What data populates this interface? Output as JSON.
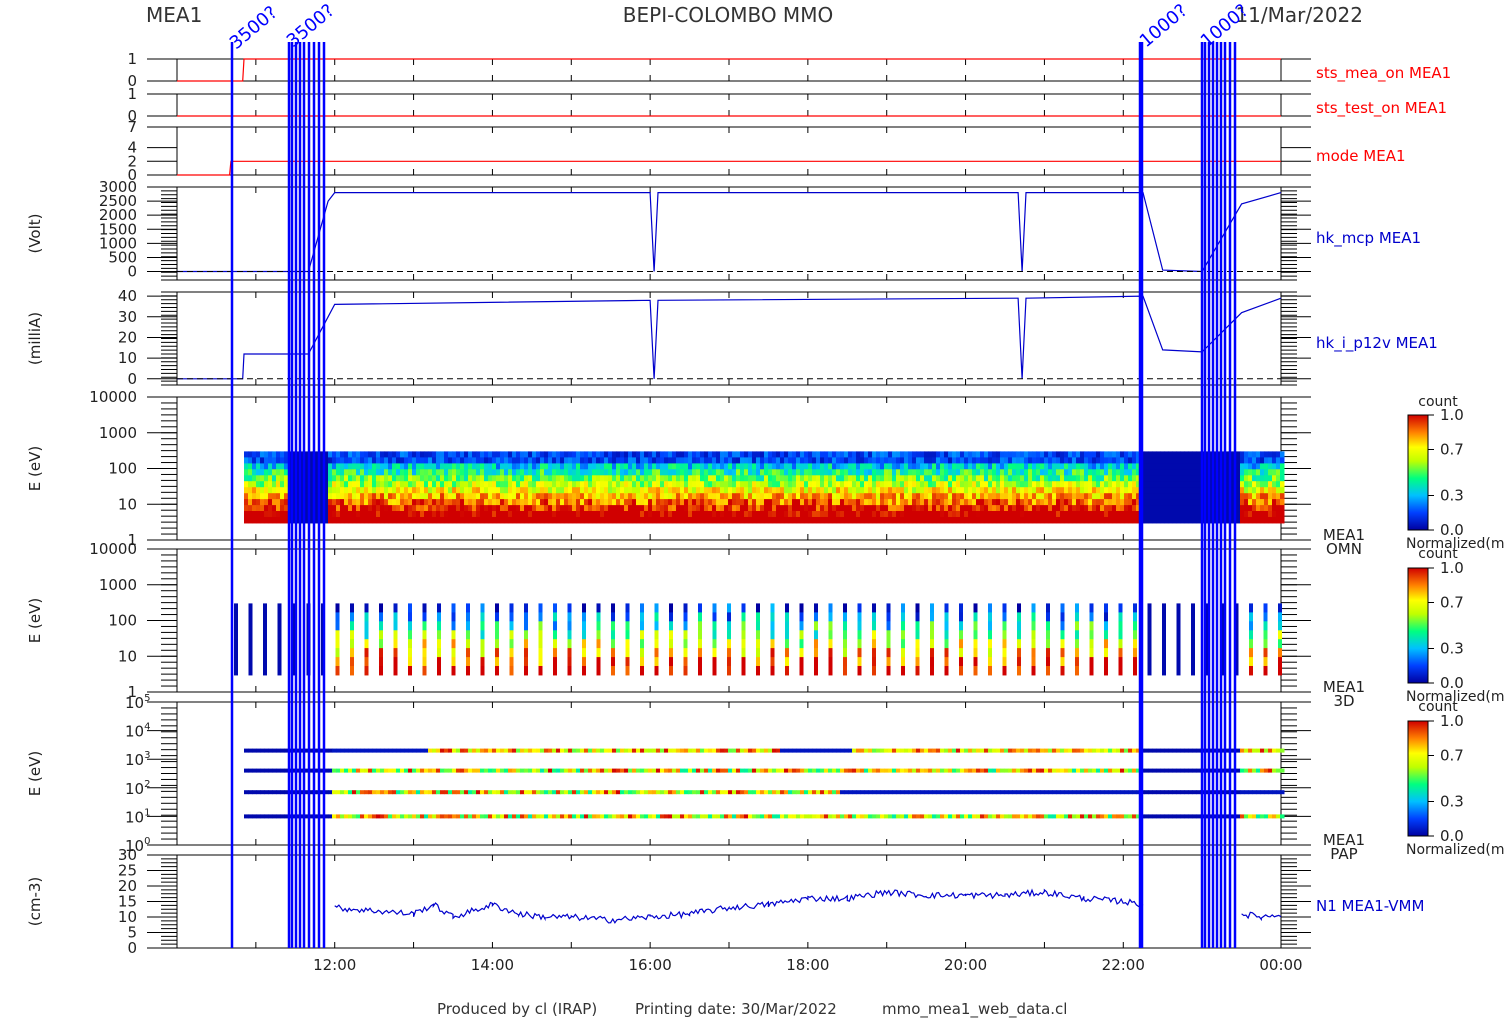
{
  "header": {
    "instrument": "MEA1",
    "mission": "BEPI-COLOMBO MMO",
    "date": "11/Mar/2022"
  },
  "footer": {
    "producer": "Produced by cl (IRAP)",
    "printing_date": "Printing date: 30/Mar/2022",
    "script": "mmo_mea1_web_data.cl"
  },
  "marker_labels": {
    "first": "3500?",
    "second": "1000?"
  },
  "colors": {
    "status_line": "#ff0000",
    "data_line": "#0000cc",
    "marker": "#0000ff",
    "frame": "#000000"
  },
  "colorbar": {
    "title": "count",
    "bottom_label": "Normalized(m",
    "ticks": [
      "1.0",
      "0.7",
      "0.3",
      "0.0"
    ]
  },
  "chart_data": [
    {
      "type": "line",
      "panel": "sts_mea_on",
      "label": "sts_mea_on MEA1",
      "yticks": [
        "1",
        "0"
      ],
      "ylim": [
        0,
        1
      ],
      "x": [
        "10:00",
        "10:50",
        "10:51",
        "00:00"
      ],
      "values": [
        0,
        0,
        1,
        1
      ]
    },
    {
      "type": "line",
      "panel": "sts_test_on",
      "label": "sts_test_on MEA1",
      "yticks": [
        "1",
        "0"
      ],
      "ylim": [
        0,
        1
      ],
      "x": [
        "10:00",
        "00:00"
      ],
      "values": [
        0,
        0
      ]
    },
    {
      "type": "line",
      "panel": "mode",
      "label": "mode MEA1",
      "yticks": [
        "7",
        "4",
        "2",
        "0"
      ],
      "ylim": [
        0,
        7
      ],
      "x": [
        "10:00",
        "10:40",
        "10:41",
        "00:00"
      ],
      "values": [
        0,
        0,
        2,
        2
      ]
    },
    {
      "type": "line",
      "panel": "hk_mcp",
      "label": "hk_mcp MEA1",
      "ylabel": "(Volt)",
      "yticks": [
        "3000",
        "2500",
        "2000",
        "1500",
        "1000",
        "500",
        "0"
      ],
      "ylim": [
        -300,
        3000
      ],
      "x": [
        "10:00",
        "11:40",
        "11:55",
        "12:00",
        "16:00",
        "16:03",
        "16:06",
        "20:40",
        "20:43",
        "20:46",
        "22:15",
        "22:30",
        "23:00",
        "23:30",
        "00:00"
      ],
      "values": [
        0,
        0,
        2500,
        2800,
        2800,
        0,
        2800,
        2800,
        0,
        2800,
        2800,
        50,
        0,
        2400,
        2800
      ]
    },
    {
      "type": "line",
      "panel": "hk_i_p12v",
      "label": "hk_i_p12v MEA1",
      "ylabel": "(milliA)",
      "yticks": [
        "40",
        "30",
        "20",
        "10",
        "0"
      ],
      "ylim": [
        -3,
        42
      ],
      "x": [
        "10:00",
        "10:50",
        "10:51",
        "11:40",
        "11:55",
        "12:00",
        "16:00",
        "16:03",
        "16:06",
        "20:40",
        "20:43",
        "20:46",
        "22:15",
        "22:30",
        "23:00",
        "23:30",
        "00:00"
      ],
      "values": [
        0,
        0,
        12,
        12,
        30,
        36,
        38,
        0,
        38,
        39,
        0,
        39,
        40,
        14,
        13,
        32,
        39
      ]
    },
    {
      "type": "heatmap",
      "panel": "omni",
      "label": "MEA1\nOMN",
      "ylabel": "E (eV)",
      "yscale": "log",
      "yticks": [
        "10000",
        "1000",
        "100",
        "10",
        "1"
      ],
      "ylim": [
        1,
        10000
      ],
      "energy_range": [
        3,
        300
      ],
      "time_range": [
        "10:51",
        "00:00"
      ],
      "description_levels": "normalized count 0.0-1.0"
    },
    {
      "type": "heatmap",
      "panel": "3d",
      "label": "MEA1\n3D",
      "ylabel": "E (eV)",
      "yscale": "log",
      "yticks": [
        "10000",
        "1000",
        "100",
        "10",
        "1"
      ],
      "ylim": [
        1,
        10000
      ],
      "energy_range": [
        3,
        300
      ],
      "time_range": [
        "10:51",
        "00:00"
      ]
    },
    {
      "type": "heatmap",
      "panel": "pap",
      "label": "MEA1\nPAP",
      "ylabel": "E (eV)",
      "yscale": "log",
      "yticks": [
        "10^5",
        "10^4",
        "10^3",
        "10^2",
        "10^1",
        "10^0"
      ],
      "ylim": [
        1,
        100000
      ],
      "bands_eV": [
        2000,
        400,
        70,
        10
      ],
      "time_range": [
        "10:51",
        "00:00"
      ]
    },
    {
      "type": "line",
      "panel": "density",
      "label": "N1 MEA1-VMM",
      "ylabel": "(cm-3)",
      "yticks": [
        "30",
        "25",
        "20",
        "15",
        "10",
        "5",
        "0"
      ],
      "ylim": [
        0,
        30
      ],
      "x": [
        "12:00",
        "12:30",
        "13:00",
        "13:15",
        "13:30",
        "14:00",
        "14:20",
        "14:40",
        "15:00",
        "15:30",
        "16:00",
        "16:30",
        "17:00",
        "17:30",
        "18:00",
        "18:30",
        "19:00",
        "19:30",
        "20:00",
        "20:30",
        "21:00",
        "21:30",
        "22:00",
        "22:15",
        "23:30",
        "23:45",
        "00:00"
      ],
      "values": [
        13,
        12,
        11,
        14,
        10,
        14,
        11,
        10,
        10,
        9,
        10,
        11,
        13,
        14,
        16,
        16,
        18,
        17,
        17,
        17,
        18,
        16,
        15,
        14,
        11,
        10,
        11
      ]
    }
  ],
  "xaxis": {
    "range": [
      "10:00",
      "00:00"
    ],
    "ticks": [
      "12:00",
      "14:00",
      "16:00",
      "18:00",
      "20:00",
      "22:00",
      "00:00"
    ]
  }
}
